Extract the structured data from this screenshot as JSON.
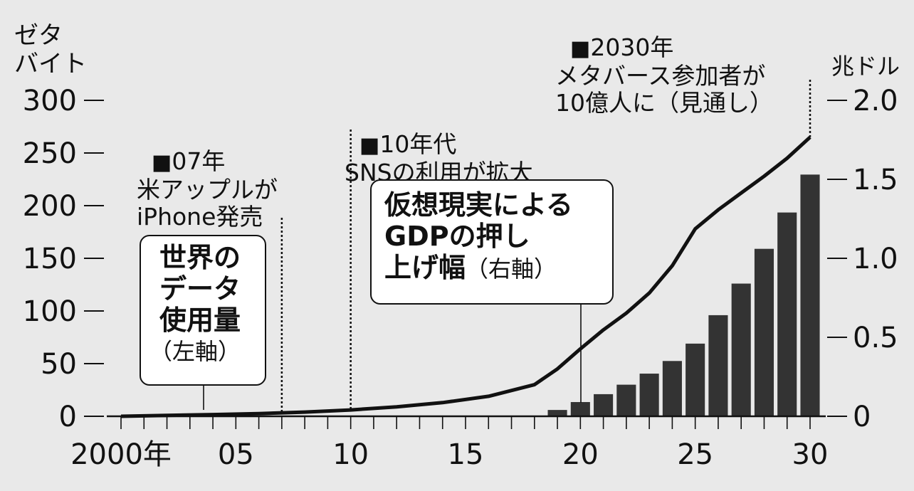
{
  "chart_data": {
    "type": "bar+line",
    "left_axis": {
      "unit_label": "ゼタ\nバイト",
      "ticks": [
        0,
        50,
        100,
        150,
        200,
        250,
        300
      ],
      "ylim": [
        0,
        300
      ]
    },
    "right_axis": {
      "unit_label": "兆ドル",
      "ticks": [
        "0",
        "0.5",
        "1.0",
        "1.5",
        "2.0"
      ],
      "tick_values": [
        0,
        0.5,
        1.0,
        1.5,
        2.0
      ],
      "ylim": [
        0,
        2.0
      ]
    },
    "x_axis": {
      "range": [
        2000,
        2030
      ],
      "tick_years": [
        2000,
        2005,
        2010,
        2015,
        2020,
        2025,
        2030
      ],
      "tick_labels": [
        "2000年",
        "05",
        "10",
        "15",
        "20",
        "25",
        "30"
      ]
    },
    "line_series": {
      "name": "世界のデータ使用量（左軸）",
      "axis": "left",
      "x": [
        2000,
        2002,
        2004,
        2006,
        2008,
        2010,
        2012,
        2014,
        2016,
        2018,
        2019,
        2020,
        2021,
        2022,
        2023,
        2024,
        2025,
        2026,
        2027,
        2028,
        2029,
        2030
      ],
      "y": [
        0,
        0.8,
        1.6,
        2.6,
        4,
        6,
        9,
        13,
        19,
        30,
        45,
        64,
        82,
        98,
        117,
        143,
        178,
        196,
        212,
        228,
        245,
        265
      ]
    },
    "bar_series": {
      "name": "仮想現実によるGDPの押し上げ幅（右軸）",
      "axis": "right",
      "x": [
        2019,
        2020,
        2021,
        2022,
        2023,
        2024,
        2025,
        2026,
        2027,
        2028,
        2029,
        2030
      ],
      "values": [
        0.04,
        0.09,
        0.14,
        0.2,
        0.27,
        0.35,
        0.46,
        0.64,
        0.84,
        1.06,
        1.29,
        1.53
      ]
    },
    "annotations": [
      {
        "year": 2007,
        "marker": "■",
        "text": "07年\n米アップルが\niPhone発売"
      },
      {
        "year": 2010,
        "marker": "■",
        "text": "10年代\nSNSの利用が拡大"
      },
      {
        "year": 2030,
        "marker": "■",
        "text": "2030年\nメタバース参加者が\n10億人に（見通し）"
      }
    ],
    "callouts": {
      "line": {
        "main": "世界の\nデータ\n使用量",
        "sub": "（左軸）"
      },
      "bars": {
        "main": "仮想現実による\nGDPの押し\n上げ幅",
        "sub": "（右軸）"
      }
    }
  }
}
